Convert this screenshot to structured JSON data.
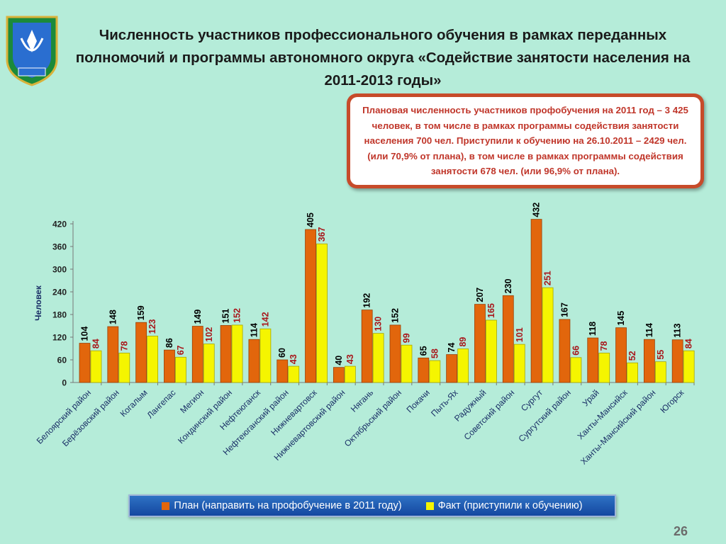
{
  "title": "Численность  участников профессионального обучения в рамках переданных полномочий и программы  автономного округа «Содействие занятости населения на 2011-2013 годы»",
  "info_box": "Плановая численность участников  профобучения на 2011 год – 3 425 человек, в том числе в рамках программы содействия занятости населения 700 чел. Приступили к обучению на 26.10.2011 – 2429 чел. (или  70,9% от плана), в том числе в рамках программы содействия занятости 678 чел. (или 96,9% от плана).",
  "page_number": "26",
  "colors": {
    "plan": "#e2660c",
    "fact": "#f5f500",
    "plan_label": "#000000",
    "fact_label": "#a8171b"
  },
  "chart_data": {
    "type": "bar",
    "ylabel": "Человек",
    "ylim": [
      0,
      420
    ],
    "yticks": [
      0,
      60,
      120,
      180,
      240,
      300,
      360,
      420
    ],
    "categories": [
      "Белоярский район",
      "Берёзовский район",
      "Когалым",
      "Лангепас",
      "Мегион",
      "Кондинский район",
      "Нефтеюганск",
      "Нефтеюганский район",
      "Нижневартовск",
      "Нижневартовский район",
      "Нягань",
      "Октябрьский район",
      "Покачи",
      "Пыть-Ях",
      "Радужный",
      "Советский район",
      "Сургут",
      "Сургутский район",
      "Урай",
      "Ханты-Мансийск",
      "Ханты-Мансийский район",
      "Югорск"
    ],
    "series": [
      {
        "name": "План (направить на профобучение в 2011 году)",
        "values": [
          104,
          148,
          159,
          86,
          149,
          151,
          114,
          60,
          405,
          40,
          192,
          152,
          65,
          74,
          207,
          230,
          432,
          167,
          118,
          145,
          114,
          113
        ]
      },
      {
        "name": "Факт (приступили к обучению)",
        "values": [
          84,
          78,
          123,
          67,
          102,
          152,
          142,
          43,
          367,
          43,
          130,
          99,
          58,
          89,
          165,
          101,
          251,
          66,
          78,
          52,
          55,
          84
        ]
      }
    ],
    "grid": false,
    "legend": "bottom"
  }
}
